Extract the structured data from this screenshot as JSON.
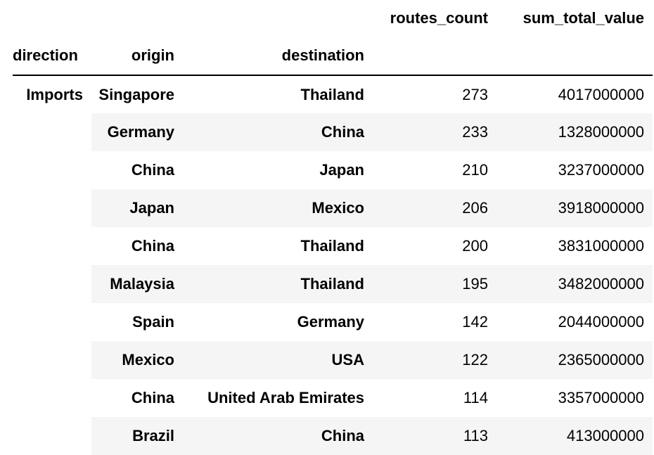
{
  "table": {
    "value_columns": [
      "routes_count",
      "sum_total_value"
    ],
    "index_names": [
      "direction",
      "origin",
      "destination"
    ],
    "groups": [
      {
        "direction": "Imports",
        "rows": [
          {
            "origin": "Singapore",
            "destination": "Thailand",
            "routes_count": "273",
            "sum_total_value": "4017000000"
          },
          {
            "origin": "Germany",
            "destination": "China",
            "routes_count": "233",
            "sum_total_value": "1328000000"
          },
          {
            "origin": "China",
            "destination": "Japan",
            "routes_count": "210",
            "sum_total_value": "3237000000"
          },
          {
            "origin": "Japan",
            "destination": "Mexico",
            "routes_count": "206",
            "sum_total_value": "3918000000"
          },
          {
            "origin": "China",
            "destination": "Thailand",
            "routes_count": "200",
            "sum_total_value": "3831000000"
          },
          {
            "origin": "Malaysia",
            "destination": "Thailand",
            "routes_count": "195",
            "sum_total_value": "3482000000"
          },
          {
            "origin": "Spain",
            "destination": "Germany",
            "routes_count": "142",
            "sum_total_value": "2044000000"
          },
          {
            "origin": "Mexico",
            "destination": "USA",
            "routes_count": "122",
            "sum_total_value": "2365000000"
          },
          {
            "origin": "China",
            "destination": "United Arab Emirates",
            "routes_count": "114",
            "sum_total_value": "3357000000"
          },
          {
            "origin": "Brazil",
            "destination": "China",
            "routes_count": "113",
            "sum_total_value": "413000000"
          }
        ]
      }
    ]
  }
}
